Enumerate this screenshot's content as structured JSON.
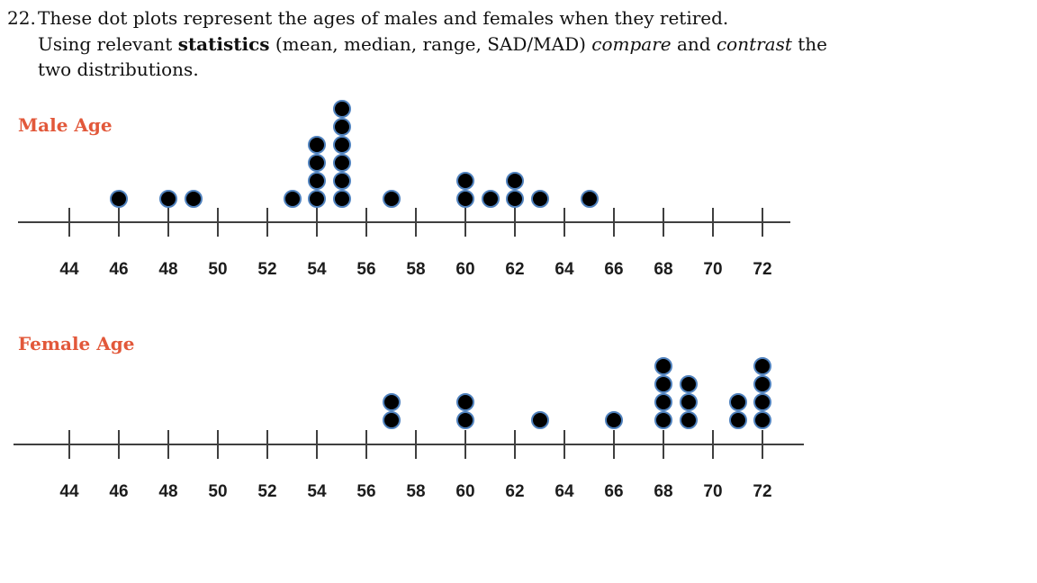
{
  "question": {
    "number": "22.",
    "line1": "These dot plots represent the ages of males and females when they retired.",
    "line2": {
      "part1": "Using relevant ",
      "bold": "statistics",
      "part2": " (mean, median, range, SAD/MAD) ",
      "italic1": "compare",
      "part3": " and ",
      "italic2": "contrast",
      "part4": " the"
    },
    "line3": "two distributions."
  },
  "colors": {
    "plot_title": "#e2583a",
    "dot_fill": "#000000",
    "dot_ring": "#4f81bd",
    "axis": "#3f3f3f",
    "tick_label": "#1c1c1c"
  },
  "chart_data": [
    {
      "type": "dotplot",
      "title": "Male Age",
      "axis_ticks": [
        44,
        46,
        48,
        50,
        52,
        54,
        56,
        58,
        60,
        62,
        64,
        66,
        68,
        70,
        72
      ],
      "xlim": [
        42,
        74
      ],
      "points": [
        {
          "value": 46,
          "count": 1
        },
        {
          "value": 48,
          "count": 1
        },
        {
          "value": 49,
          "count": 1
        },
        {
          "value": 53,
          "count": 1
        },
        {
          "value": 54,
          "count": 4
        },
        {
          "value": 55,
          "count": 6
        },
        {
          "value": 57,
          "count": 1
        },
        {
          "value": 60,
          "count": 2
        },
        {
          "value": 61,
          "count": 1
        },
        {
          "value": 62,
          "count": 2
        },
        {
          "value": 63,
          "count": 1
        },
        {
          "value": 65,
          "count": 1
        }
      ]
    },
    {
      "type": "dotplot",
      "title": "Female Age",
      "axis_ticks": [
        44,
        46,
        48,
        50,
        52,
        54,
        56,
        58,
        60,
        62,
        64,
        66,
        68,
        70,
        72
      ],
      "xlim": [
        42,
        74
      ],
      "points": [
        {
          "value": 57,
          "count": 2
        },
        {
          "value": 60,
          "count": 2
        },
        {
          "value": 63,
          "count": 1
        },
        {
          "value": 66,
          "count": 1
        },
        {
          "value": 68,
          "count": 4
        },
        {
          "value": 69,
          "count": 3
        },
        {
          "value": 71,
          "count": 2
        },
        {
          "value": 72,
          "count": 4
        }
      ]
    }
  ]
}
